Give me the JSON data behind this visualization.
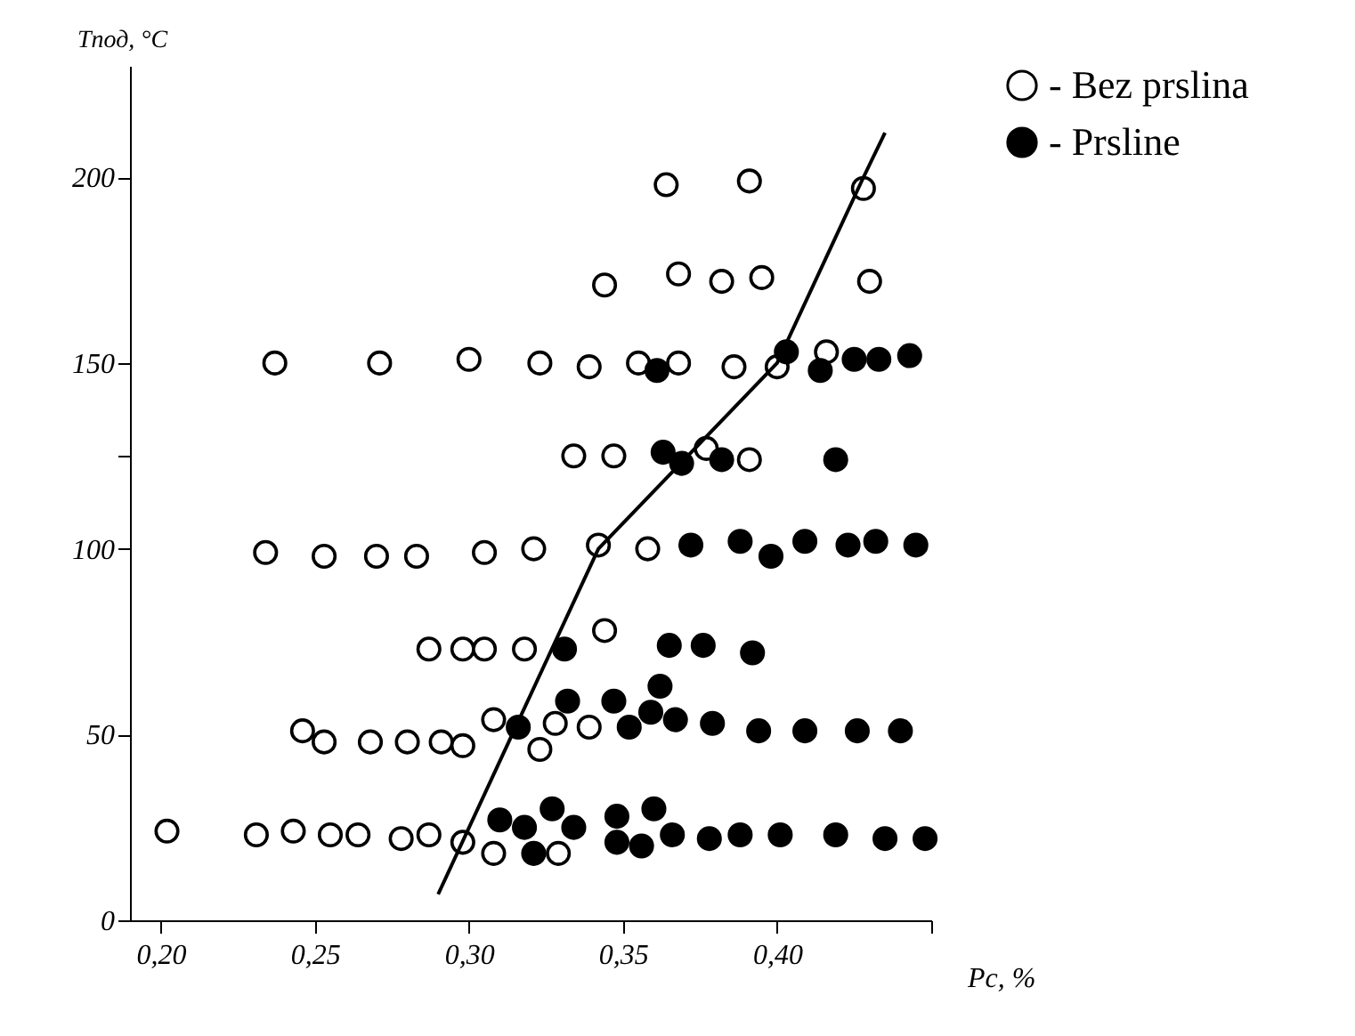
{
  "chart_data": {
    "type": "scatter",
    "xlabel": "Pc, %",
    "ylabel": "Tпод, °C",
    "xlim": [
      0.19,
      0.45
    ],
    "ylim": [
      0,
      230
    ],
    "xticks": [
      {
        "value": 0.2,
        "label": "0,20"
      },
      {
        "value": 0.25,
        "label": "0,25"
      },
      {
        "value": 0.3,
        "label": "0,30"
      },
      {
        "value": 0.35,
        "label": "0,35"
      },
      {
        "value": 0.4,
        "label": "0,40"
      },
      {
        "value": 0.45,
        "label": null
      }
    ],
    "yticks": [
      0,
      50,
      100,
      {
        "value": 125,
        "label": null
      },
      150,
      200
    ],
    "grid": false,
    "legend": "right",
    "marker": "circle",
    "series": [
      {
        "name": "- Bez prslina",
        "color": "#ffffff",
        "x": [
          0.202,
          0.231,
          0.243,
          0.255,
          0.264,
          0.278,
          0.287,
          0.298,
          0.308,
          0.329,
          0.246,
          0.253,
          0.268,
          0.28,
          0.291,
          0.298,
          0.308,
          0.323,
          0.328,
          0.339,
          0.287,
          0.298,
          0.305,
          0.318,
          0.344,
          0.234,
          0.253,
          0.27,
          0.283,
          0.305,
          0.321,
          0.342,
          0.358,
          0.334,
          0.347,
          0.377,
          0.391,
          0.237,
          0.271,
          0.3,
          0.323,
          0.339,
          0.355,
          0.368,
          0.386,
          0.4,
          0.416,
          0.344,
          0.368,
          0.382,
          0.395,
          0.43,
          0.364,
          0.391,
          0.428
        ],
        "values": [
          24,
          23,
          24,
          23,
          23,
          22,
          23,
          21,
          18,
          18,
          51,
          48,
          48,
          48,
          48,
          47,
          54,
          46,
          53,
          52,
          73,
          73,
          73,
          73,
          78,
          99,
          98,
          98,
          98,
          99,
          100,
          101,
          100,
          125,
          125,
          127,
          124,
          150,
          150,
          151,
          150,
          149,
          150,
          150,
          149,
          149,
          153,
          171,
          174,
          172,
          173,
          172,
          198,
          199,
          197
        ]
      },
      {
        "name": "- Prsline",
        "color": "#000000",
        "x": [
          0.31,
          0.318,
          0.327,
          0.334,
          0.321,
          0.348,
          0.356,
          0.36,
          0.348,
          0.366,
          0.378,
          0.388,
          0.401,
          0.419,
          0.435,
          0.448,
          0.316,
          0.332,
          0.347,
          0.352,
          0.359,
          0.362,
          0.367,
          0.379,
          0.394,
          0.409,
          0.426,
          0.44,
          0.331,
          0.365,
          0.376,
          0.392,
          0.372,
          0.388,
          0.398,
          0.409,
          0.423,
          0.432,
          0.445,
          0.363,
          0.369,
          0.382,
          0.419,
          0.361,
          0.403,
          0.414,
          0.425,
          0.433,
          0.443
        ],
        "values": [
          27,
          25,
          30,
          25,
          18,
          28,
          20,
          30,
          21,
          23,
          22,
          23,
          23,
          23,
          22,
          22,
          52,
          59,
          59,
          52,
          56,
          63,
          54,
          53,
          51,
          51,
          51,
          51,
          73,
          74,
          74,
          72,
          101,
          102,
          98,
          102,
          101,
          102,
          101,
          126,
          123,
          124,
          124,
          148,
          153,
          148,
          151,
          151,
          152
        ]
      },
      {
        "type": "line",
        "color": "#000000",
        "marker": "none",
        "line_style": "solid",
        "x": [
          0.29,
          0.314,
          0.342,
          0.4,
          0.428,
          0.435
        ],
        "values": [
          7,
          50,
          100,
          150,
          200,
          212
        ]
      }
    ]
  }
}
